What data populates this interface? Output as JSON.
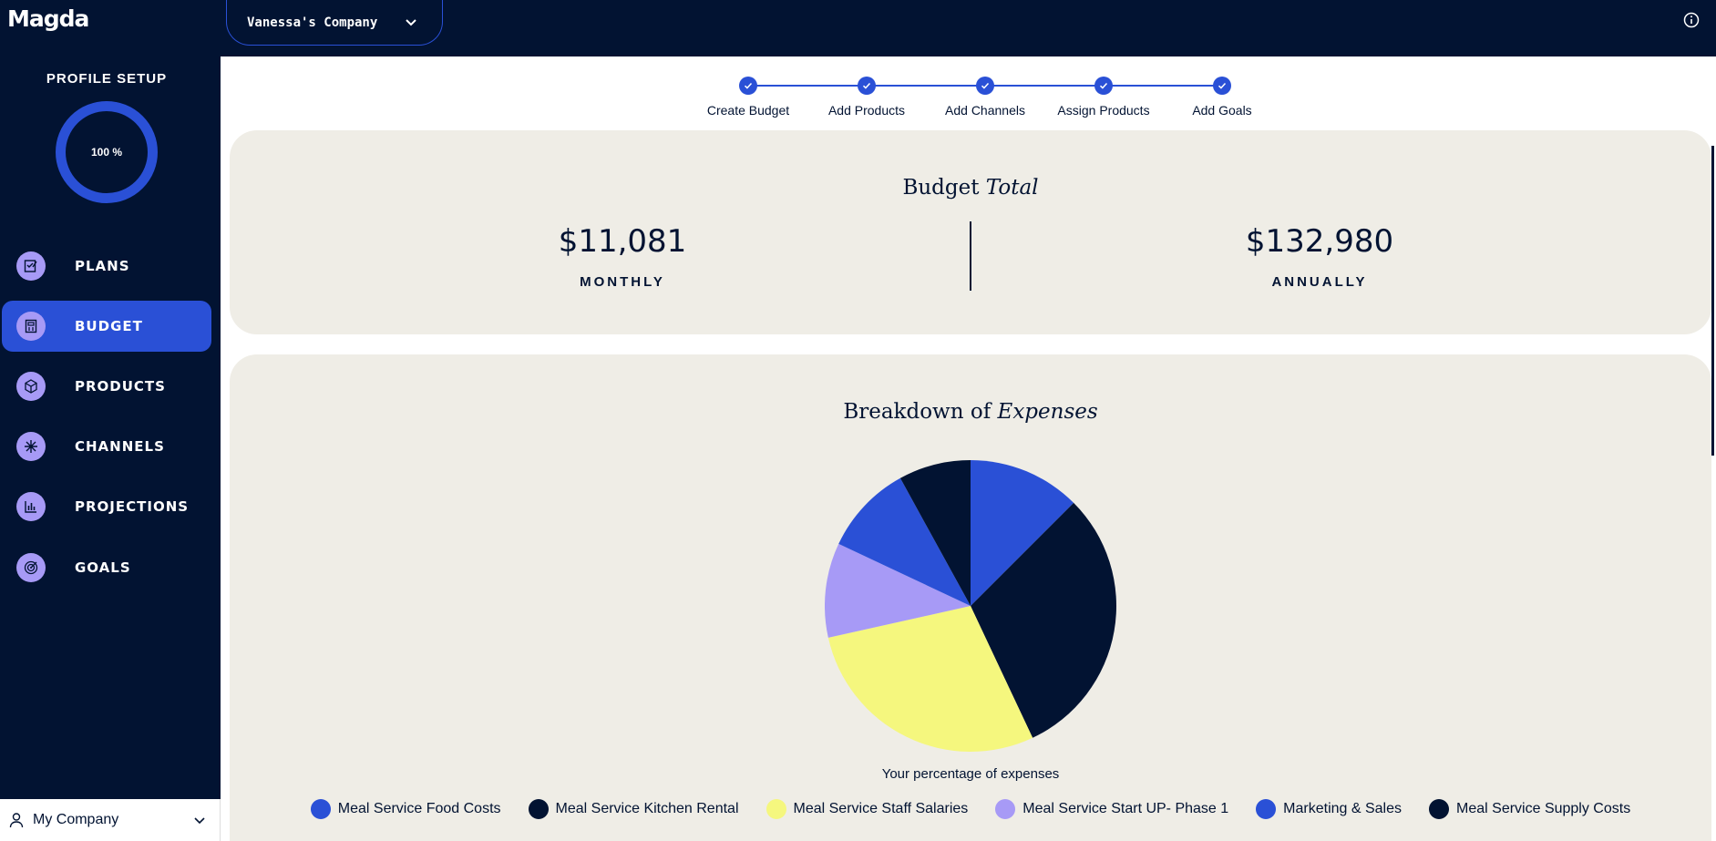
{
  "header": {
    "logo": "Magda",
    "company_selector": "Vanessa's Company"
  },
  "sidebar": {
    "profile_title": "PROFILE SETUP",
    "profile_progress": "100 %",
    "profile_progress_value": 100,
    "items": [
      {
        "label": "PLANS",
        "icon": "plans-icon"
      },
      {
        "label": "BUDGET",
        "icon": "budget-icon",
        "active": true
      },
      {
        "label": "PRODUCTS",
        "icon": "products-icon"
      },
      {
        "label": "CHANNELS",
        "icon": "channels-icon"
      },
      {
        "label": "PROJECTIONS",
        "icon": "projections-icon"
      },
      {
        "label": "GOALS",
        "icon": "goals-icon"
      }
    ],
    "bottom_company": "My Company"
  },
  "stepper": {
    "steps": [
      {
        "label": "Create Budget",
        "done": true
      },
      {
        "label": "Add Products",
        "done": true
      },
      {
        "label": "Add Channels",
        "done": true
      },
      {
        "label": "Assign Products",
        "done": true
      },
      {
        "label": "Add Goals",
        "done": true
      }
    ]
  },
  "budget_total": {
    "title_plain": "Budget",
    "title_italic": "Total",
    "monthly_value": "$11,081",
    "monthly_label": "MONTHLY",
    "annual_value": "$132,980",
    "annual_label": "ANNUALLY"
  },
  "breakdown": {
    "title_plain": "Breakdown of",
    "title_italic": "Expenses",
    "caption": "Your percentage of expenses"
  },
  "colors": {
    "navy": "#021332",
    "blue": "#2a50d6",
    "lavender": "#a79af6",
    "yellow": "#f5f77e",
    "card_bg": "#efede6"
  },
  "chart_data": {
    "type": "pie",
    "title": "Breakdown of Expenses",
    "legend_position": "bottom",
    "slices": [
      {
        "label": "Meal Service Food Costs",
        "value": 12.5,
        "color": "#2a50d6"
      },
      {
        "label": "Meal Service Kitchen Rental",
        "value": 30.5,
        "color": "#021332"
      },
      {
        "label": "Meal Service Staff Salaries",
        "value": 28.5,
        "color": "#f5f77e"
      },
      {
        "label": "Meal Service Start UP- Phase 1",
        "value": 10.5,
        "color": "#a79af6"
      },
      {
        "label": "Marketing & Sales",
        "value": 10.0,
        "color": "#2a50d6"
      },
      {
        "label": "Meal Service Supply Costs",
        "value": 8.0,
        "color": "#021332"
      }
    ]
  }
}
